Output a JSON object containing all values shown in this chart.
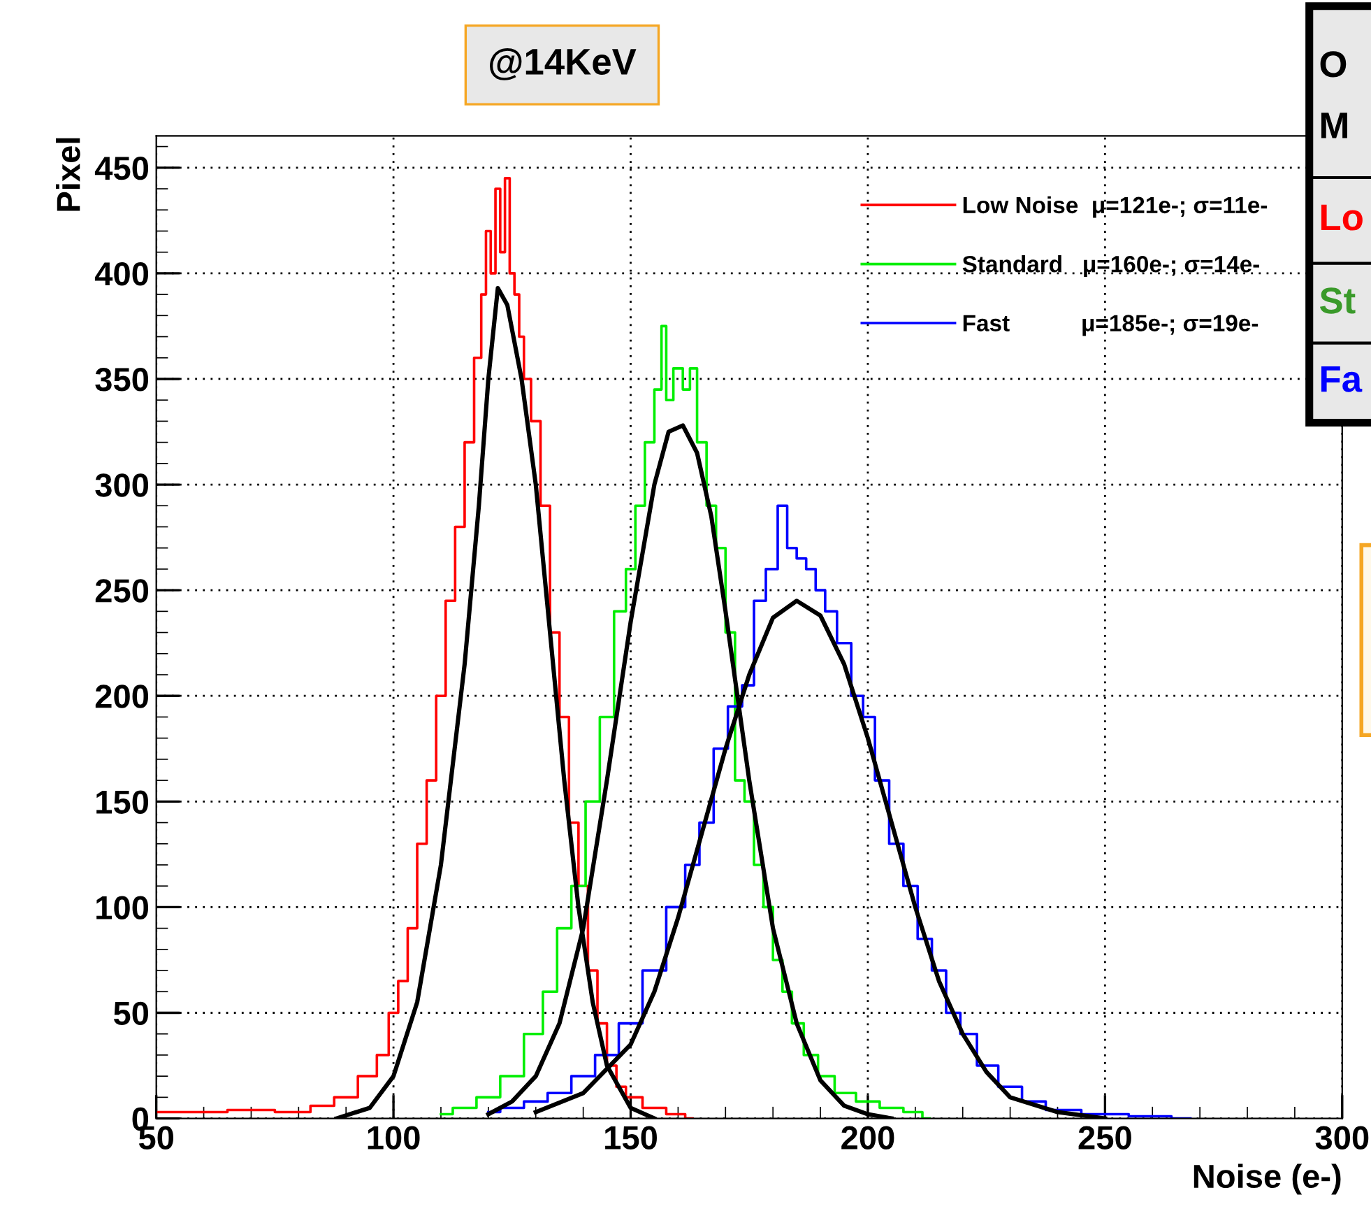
{
  "chart_data": {
    "type": "step",
    "title": "@14KeV",
    "xlabel": "Noise (e-)",
    "ylabel": "Pixel",
    "xlim": [
      50,
      300
    ],
    "ylim": [
      0,
      465
    ],
    "xticks": [
      50,
      100,
      150,
      200,
      250,
      300
    ],
    "yticks": [
      0,
      50,
      100,
      150,
      200,
      250,
      300,
      350,
      400,
      450
    ],
    "grid": true,
    "legend": "top right",
    "line_style": "solid",
    "annotations": [
      "O",
      "M",
      "Lo",
      "St",
      "Fa"
    ],
    "series": [
      {
        "name": "Low Noise  μ=121e-; σ=11e-",
        "color": "#ff0000",
        "x": [
          50,
          60,
          70,
          80,
          85,
          90,
          95,
          98,
          100,
          102,
          104,
          106,
          108,
          110,
          112,
          114,
          116,
          118,
          119,
          120,
          121,
          122,
          123,
          124,
          125,
          126,
          127,
          128,
          130,
          132,
          134,
          136,
          138,
          140,
          142,
          144,
          146,
          148,
          150,
          155,
          160,
          163
        ],
        "values": [
          3,
          3,
          4,
          3,
          6,
          10,
          20,
          30,
          50,
          65,
          90,
          130,
          160,
          200,
          245,
          280,
          320,
          360,
          390,
          420,
          400,
          440,
          410,
          445,
          400,
          390,
          370,
          350,
          330,
          290,
          230,
          190,
          140,
          110,
          70,
          45,
          25,
          15,
          10,
          5,
          2,
          0
        ]
      },
      {
        "name": "Standard   μ=160e-; σ=14e-",
        "color": "#00ee00",
        "x": [
          110,
          115,
          120,
          125,
          130,
          133,
          136,
          139,
          142,
          145,
          148,
          150,
          152,
          154,
          156,
          157,
          158,
          160,
          162,
          163,
          165,
          167,
          169,
          171,
          173,
          175,
          177,
          179,
          181,
          183,
          185,
          188,
          191,
          195,
          200,
          205,
          210,
          213
        ],
        "values": [
          2,
          5,
          10,
          20,
          40,
          60,
          90,
          110,
          150,
          190,
          240,
          260,
          290,
          320,
          345,
          375,
          340,
          355,
          345,
          355,
          320,
          290,
          270,
          230,
          160,
          150,
          120,
          100,
          75,
          60,
          45,
          30,
          20,
          12,
          8,
          5,
          3,
          0
        ]
      },
      {
        "name": "Fast           μ=185e-; σ=19e-",
        "color": "#0000ff",
        "x": [
          120,
          125,
          130,
          135,
          140,
          145,
          150,
          155,
          160,
          163,
          166,
          169,
          172,
          175,
          177,
          180,
          182,
          184,
          186,
          188,
          190,
          192,
          195,
          198,
          200,
          203,
          206,
          209,
          212,
          215,
          218,
          221,
          225,
          230,
          235,
          240,
          250,
          260,
          268
        ],
        "values": [
          3,
          5,
          8,
          12,
          20,
          30,
          45,
          70,
          100,
          120,
          140,
          175,
          195,
          205,
          245,
          260,
          290,
          270,
          265,
          260,
          250,
          240,
          225,
          200,
          190,
          160,
          130,
          110,
          85,
          70,
          50,
          40,
          25,
          15,
          8,
          4,
          2,
          1,
          0
        ]
      },
      {
        "type": "line",
        "color": "#000000",
        "x": [
          88,
          95,
          100,
          105,
          110,
          115,
          118,
          120,
          122,
          124,
          127,
          130,
          133,
          136,
          139,
          142,
          145,
          150,
          155
        ],
        "values": [
          0,
          5,
          20,
          55,
          120,
          215,
          290,
          350,
          393,
          385,
          350,
          300,
          230,
          160,
          100,
          55,
          25,
          5,
          0
        ]
      },
      {
        "type": "line",
        "color": "#000000",
        "x": [
          120,
          125,
          130,
          135,
          140,
          145,
          150,
          155,
          158,
          161,
          164,
          167,
          170,
          175,
          180,
          185,
          190,
          195,
          200,
          205
        ],
        "values": [
          2,
          8,
          20,
          45,
          90,
          160,
          235,
          300,
          325,
          328,
          315,
          285,
          240,
          160,
          90,
          45,
          18,
          6,
          2,
          0
        ]
      },
      {
        "type": "line",
        "color": "#000000",
        "x": [
          130,
          140,
          150,
          155,
          160,
          165,
          170,
          175,
          180,
          185,
          190,
          195,
          200,
          205,
          210,
          215,
          220,
          225,
          230,
          240,
          250
        ],
        "values": [
          3,
          12,
          35,
          60,
          95,
          135,
          175,
          210,
          237,
          245,
          238,
          215,
          180,
          140,
          100,
          65,
          40,
          22,
          10,
          3,
          0
        ]
      }
    ]
  }
}
